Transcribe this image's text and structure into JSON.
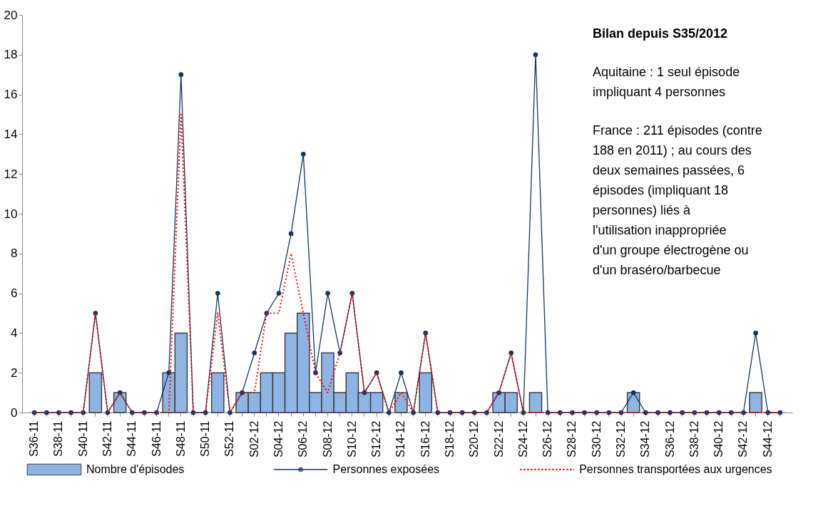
{
  "chart_data": {
    "type": "bar",
    "categories": [
      "S36-11",
      null,
      "S38-11",
      null,
      "S40-11",
      null,
      "S42-11",
      null,
      "S44-11",
      null,
      "S46-11",
      null,
      "S48-11",
      null,
      "S50-11",
      null,
      "S52-11",
      null,
      "S02-12",
      null,
      "S04-12",
      null,
      "S06-12",
      null,
      "S08-12",
      null,
      "S10-12",
      null,
      "S12-12",
      null,
      "S14-12",
      null,
      "S16-12",
      null,
      "S18-12",
      null,
      "S20-12",
      null,
      "S22-12",
      null,
      "S24-12",
      null,
      "S26-12",
      null,
      "S28-12",
      null,
      "S30-12",
      null,
      "S32-12",
      null,
      "S34-12",
      null,
      "S36-12",
      null,
      "S38-12",
      null,
      "S40-12",
      null,
      "S42-12",
      null,
      "S44-12",
      null
    ],
    "ylim": [
      0,
      20
    ],
    "yticks": [
      0,
      2,
      4,
      6,
      8,
      10,
      12,
      14,
      16,
      18,
      20
    ],
    "grid": false,
    "legend": "bottom",
    "annotations": [
      "Bilan depuis S35/2012",
      "Aquitaine : 1 seul épisode impliquant 4 personnes",
      "France : 211 épisodes (contre 188 en 2011) ; au cours des deux semaines passées, 6 épisodes (impliquant 18 personnes) liés à l'utilisation inappropriée d'un groupe électrogène ou d'un braséro/barbecue"
    ],
    "series": [
      {
        "name": "Nombre d'épisodes",
        "color": "#8eb4e3",
        "values": [
          0,
          0,
          0,
          0,
          0,
          2,
          0,
          1,
          0,
          0,
          0,
          2,
          4,
          0,
          0,
          2,
          0,
          1,
          1,
          2,
          2,
          4,
          5,
          1,
          3,
          1,
          2,
          1,
          1,
          0,
          1,
          0,
          2,
          0,
          0,
          0,
          0,
          0,
          1,
          1,
          0,
          1,
          0,
          0,
          0,
          0,
          0,
          0,
          0,
          1,
          0,
          0,
          0,
          0,
          0,
          0,
          0,
          0,
          0,
          1,
          0,
          0
        ]
      },
      {
        "name": "Personnes exposées",
        "type": "line",
        "color": "#17375e",
        "marker": "circle",
        "line_style": "solid",
        "values": [
          0,
          0,
          0,
          0,
          0,
          5,
          0,
          1,
          0,
          0,
          0,
          2,
          17,
          0,
          0,
          6,
          0,
          1,
          3,
          5,
          6,
          9,
          13,
          2,
          6,
          3,
          6,
          1,
          2,
          0,
          2,
          0,
          4,
          0,
          0,
          0,
          0,
          0,
          1,
          3,
          0,
          18,
          0,
          0,
          0,
          0,
          0,
          0,
          0,
          1,
          0,
          0,
          0,
          0,
          0,
          0,
          0,
          0,
          0,
          4,
          0,
          0
        ]
      },
      {
        "name": "Personnes transportées aux urgences",
        "type": "line",
        "color": "#ff0000",
        "line_style": "dotted",
        "marker": "none",
        "values": [
          0,
          0,
          0,
          0,
          0,
          5,
          0,
          1,
          0,
          0,
          0,
          0,
          15,
          0,
          0,
          5,
          0,
          1,
          1,
          5,
          5,
          8,
          5,
          2,
          1,
          3,
          6,
          1,
          2,
          0,
          1,
          0,
          4,
          0,
          0,
          0,
          0,
          0,
          1,
          3,
          0,
          0,
          0,
          0,
          0,
          0,
          0,
          0,
          0,
          0,
          0,
          0,
          0,
          0,
          0,
          0,
          0,
          0,
          0,
          0,
          0,
          0
        ]
      }
    ]
  }
}
